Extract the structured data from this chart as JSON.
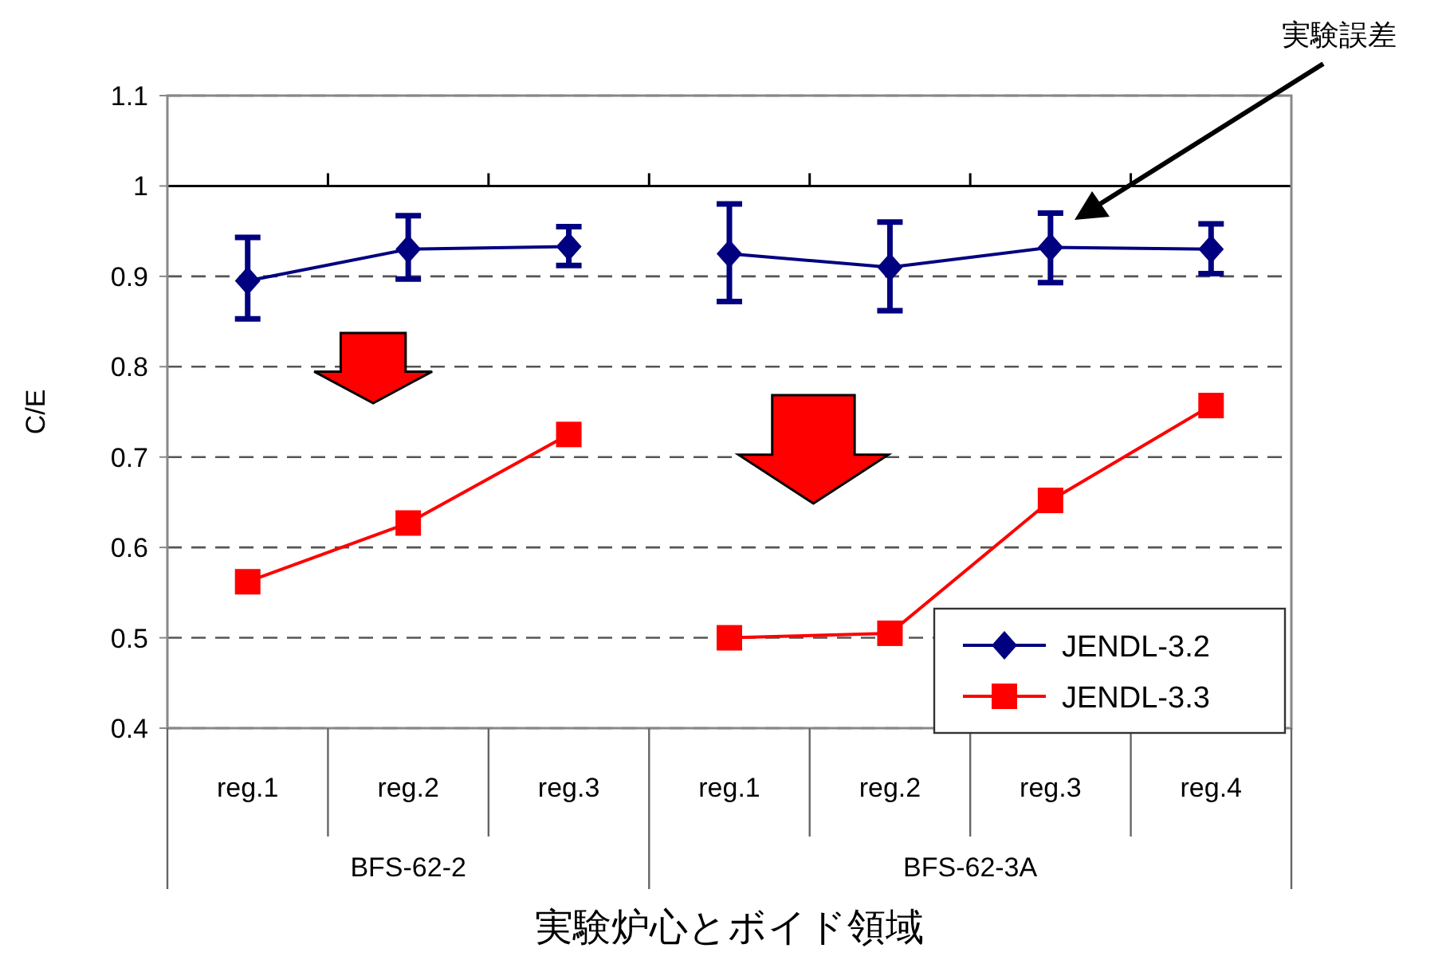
{
  "chart_data": {
    "type": "line",
    "xlabel": "実験炉心とボイド領域",
    "ylabel": "C/E",
    "categories": [
      "reg.1",
      "reg.2",
      "reg.3",
      "reg.1",
      "reg.2",
      "reg.3",
      "reg.4"
    ],
    "series": [
      {
        "name": "JENDL-3.2",
        "color": "#000080",
        "marker": "diamond",
        "values": [
          0.895,
          0.93,
          0.933,
          null,
          null,
          null,
          null
        ],
        "errors": [
          [
            0.853,
            0.943
          ],
          [
            0.897,
            0.967
          ],
          [
            0.912,
            0.955
          ],
          null,
          null,
          null,
          null
        ]
      },
      {
        "color": "#000080",
        "marker": "diamond",
        "values": [
          null,
          null,
          null,
          0.925,
          0.91,
          0.932,
          0.93
        ],
        "errors": [
          null,
          null,
          null,
          [
            0.872,
            0.98
          ],
          [
            0.862,
            0.96
          ],
          [
            0.893,
            0.97
          ],
          [
            0.903,
            0.958
          ]
        ]
      },
      {
        "name": "JENDL-3.3",
        "color": "#ff0000",
        "marker": "square",
        "values": [
          0.562,
          0.627,
          0.725,
          null,
          null,
          null,
          null
        ]
      },
      {
        "color": "#ff0000",
        "marker": "square",
        "values": [
          null,
          null,
          null,
          0.5,
          0.505,
          0.652,
          0.757
        ]
      }
    ],
    "ylim": [
      0.4,
      1.1
    ],
    "yticks": [
      0.4,
      0.5,
      0.6,
      0.7,
      0.8,
      0.9,
      1,
      1.1
    ],
    "grid": "y",
    "ref_lines": [
      {
        "axis": "y",
        "value": 1,
        "color": "#000000",
        "line_style": "solid"
      }
    ],
    "legend": "bottom right",
    "annotations": [
      "BFS-62-2",
      "BFS-62-3A",
      "実験誤差"
    ]
  }
}
